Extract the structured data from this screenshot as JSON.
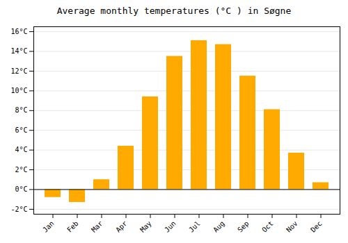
{
  "chart_data": {
    "type": "bar",
    "title": "Average monthly temperatures (°C ) in Søgne",
    "categories": [
      "Jan",
      "Feb",
      "Mar",
      "Apr",
      "May",
      "Jun",
      "Jul",
      "Aug",
      "Sep",
      "Oct",
      "Nov",
      "Dec"
    ],
    "values": [
      -0.8,
      -1.3,
      1.0,
      4.4,
      9.4,
      13.5,
      15.1,
      14.7,
      11.5,
      8.1,
      3.7,
      0.7
    ],
    "color": "#FFAA00",
    "ylim": [
      -2.5,
      16.5
    ],
    "yticks": [
      {
        "value": -2,
        "label": "-2°C"
      },
      {
        "value": 0,
        "label": "0°C"
      },
      {
        "value": 2,
        "label": "2°C"
      },
      {
        "value": 4,
        "label": "4°C"
      },
      {
        "value": 6,
        "label": "6°C"
      },
      {
        "value": 8,
        "label": "8°C"
      },
      {
        "value": 10,
        "label": "10°C"
      },
      {
        "value": 12,
        "label": "12°C"
      },
      {
        "value": 14,
        "label": "14°C"
      },
      {
        "value": 16,
        "label": "16°C"
      }
    ],
    "grid": true
  }
}
